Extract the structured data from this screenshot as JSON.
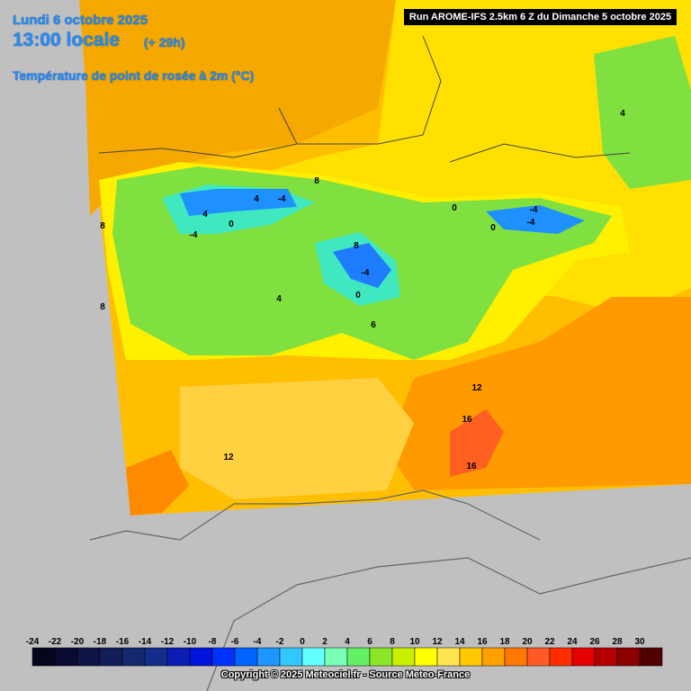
{
  "header": {
    "date": "Lundi 6 octobre 2025",
    "time": "13:00 locale",
    "lead": "(+ 29h)",
    "parameter": "Température de point de rosée à 2m (°C)",
    "run": "Run AROME-IFS 2.5km 6 Z du Dimanche 5 octobre 2025"
  },
  "map": {
    "contour_labels": [
      8,
      -4,
      -4,
      0,
      8,
      -4,
      0,
      4,
      0,
      -4,
      -4,
      0,
      4,
      8,
      8,
      4,
      6,
      12,
      16,
      16,
      12,
      4
    ]
  },
  "legend": {
    "labels": [
      -24,
      -22,
      -20,
      -18,
      -16,
      -14,
      -12,
      -10,
      -8,
      -6,
      -4,
      -2,
      0,
      2,
      4,
      6,
      8,
      10,
      12,
      14,
      16,
      18,
      20,
      22,
      24,
      26,
      28,
      30
    ],
    "colors": [
      "#05051e",
      "#0a0a32",
      "#0f1446",
      "#121e5a",
      "#14286e",
      "#142d8c",
      "#0a1eb4",
      "#0014dc",
      "#0032ff",
      "#0064ff",
      "#1e96ff",
      "#32c8ff",
      "#64ffff",
      "#78ffb4",
      "#64f064",
      "#8ce628",
      "#c8f000",
      "#ffff00",
      "#ffe650",
      "#ffc800",
      "#ffa000",
      "#ff7800",
      "#ff5a28",
      "#ff2d00",
      "#e60000",
      "#b40000",
      "#8c0000",
      "#500000"
    ]
  },
  "footer": {
    "copyright": "Copyright © 2025 Meteociel.fr - Source Meteo-France"
  }
}
